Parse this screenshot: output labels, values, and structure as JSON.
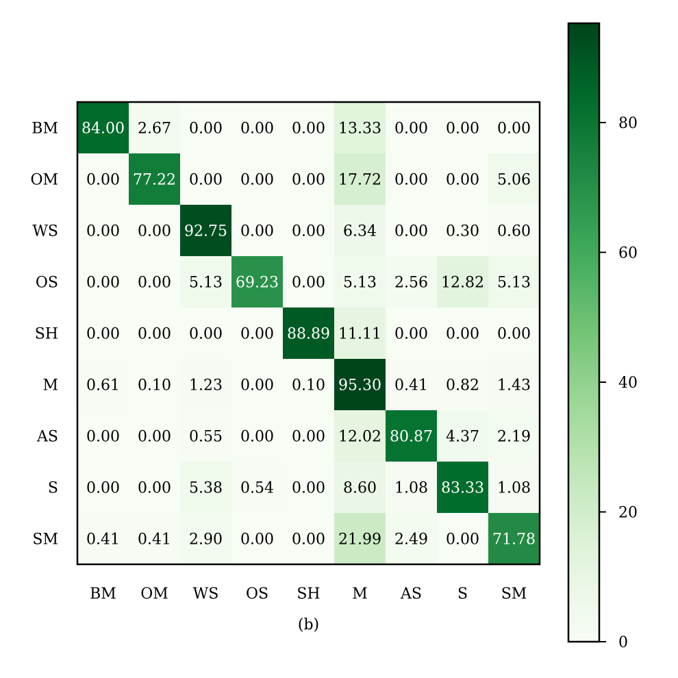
{
  "chart_data": {
    "type": "heatmap",
    "caption": "(b)",
    "row_labels": [
      "BM",
      "OM",
      "WS",
      "OS",
      "SH",
      "M",
      "AS",
      "S",
      "SM"
    ],
    "col_labels": [
      "BM",
      "OM",
      "WS",
      "OS",
      "SH",
      "M",
      "AS",
      "S",
      "SM"
    ],
    "values": [
      [
        84.0,
        2.67,
        0.0,
        0.0,
        0.0,
        13.33,
        0.0,
        0.0,
        0.0
      ],
      [
        0.0,
        77.22,
        0.0,
        0.0,
        0.0,
        17.72,
        0.0,
        0.0,
        5.06
      ],
      [
        0.0,
        0.0,
        92.75,
        0.0,
        0.0,
        6.34,
        0.0,
        0.3,
        0.6
      ],
      [
        0.0,
        0.0,
        5.13,
        69.23,
        0.0,
        5.13,
        2.56,
        12.82,
        5.13
      ],
      [
        0.0,
        0.0,
        0.0,
        0.0,
        88.89,
        11.11,
        0.0,
        0.0,
        0.0
      ],
      [
        0.61,
        0.1,
        1.23,
        0.0,
        0.1,
        95.3,
        0.41,
        0.82,
        1.43
      ],
      [
        0.0,
        0.0,
        0.55,
        0.0,
        0.0,
        12.02,
        80.87,
        4.37,
        2.19
      ],
      [
        0.0,
        0.0,
        5.38,
        0.54,
        0.0,
        8.6,
        1.08,
        83.33,
        1.08
      ],
      [
        0.41,
        0.41,
        2.9,
        0.0,
        0.0,
        21.99,
        2.49,
        0.0,
        71.78
      ]
    ],
    "colormap": "Greens",
    "colorbar": {
      "range": [
        0,
        95.3
      ],
      "ticks": [
        0,
        20,
        40,
        60,
        80
      ]
    },
    "text_color_dark": "#000000",
    "text_color_light": "#ffffff",
    "text_threshold": 50
  }
}
